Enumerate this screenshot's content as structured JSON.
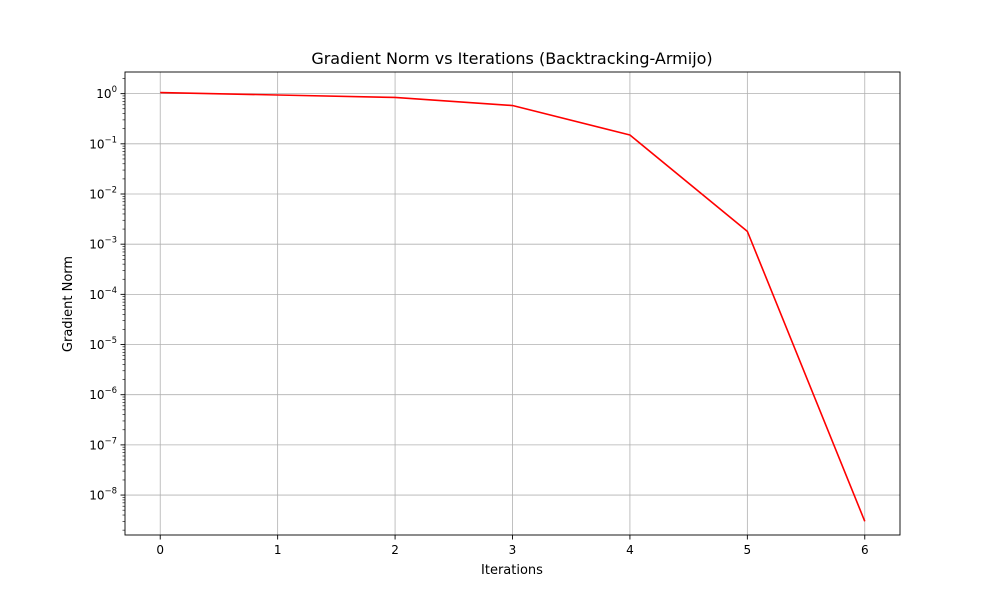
{
  "chart_data": {
    "type": "line",
    "title": "Gradient Norm vs Iterations (Backtracking-Armijo)",
    "xlabel": "Iterations",
    "ylabel": "Gradient Norm",
    "yscale": "log",
    "grid": true,
    "xlim": [
      -0.3,
      6.3
    ],
    "ylim": [
      1.6e-09,
      2.7
    ],
    "x_ticks": [
      0,
      1,
      2,
      3,
      4,
      5,
      6
    ],
    "x_tick_labels": [
      "0",
      "1",
      "2",
      "3",
      "4",
      "5",
      "6"
    ],
    "y_ticks": [
      1,
      0.1,
      0.01,
      0.001,
      0.0001,
      1e-05,
      1e-06,
      1e-07,
      1e-08
    ],
    "y_tick_labels": [
      {
        "base": "10",
        "exp": "0"
      },
      {
        "base": "10",
        "exp": "−1"
      },
      {
        "base": "10",
        "exp": "−2"
      },
      {
        "base": "10",
        "exp": "−3"
      },
      {
        "base": "10",
        "exp": "−4"
      },
      {
        "base": "10",
        "exp": "−5"
      },
      {
        "base": "10",
        "exp": "−6"
      },
      {
        "base": "10",
        "exp": "−7"
      },
      {
        "base": "10",
        "exp": "−8"
      }
    ],
    "series": [
      {
        "color": "#ff0000",
        "x": [
          0,
          1,
          2,
          3,
          4,
          5,
          6
        ],
        "y": [
          1.05,
          0.94,
          0.84,
          0.58,
          0.15,
          0.0018,
          3e-09
        ]
      }
    ]
  }
}
